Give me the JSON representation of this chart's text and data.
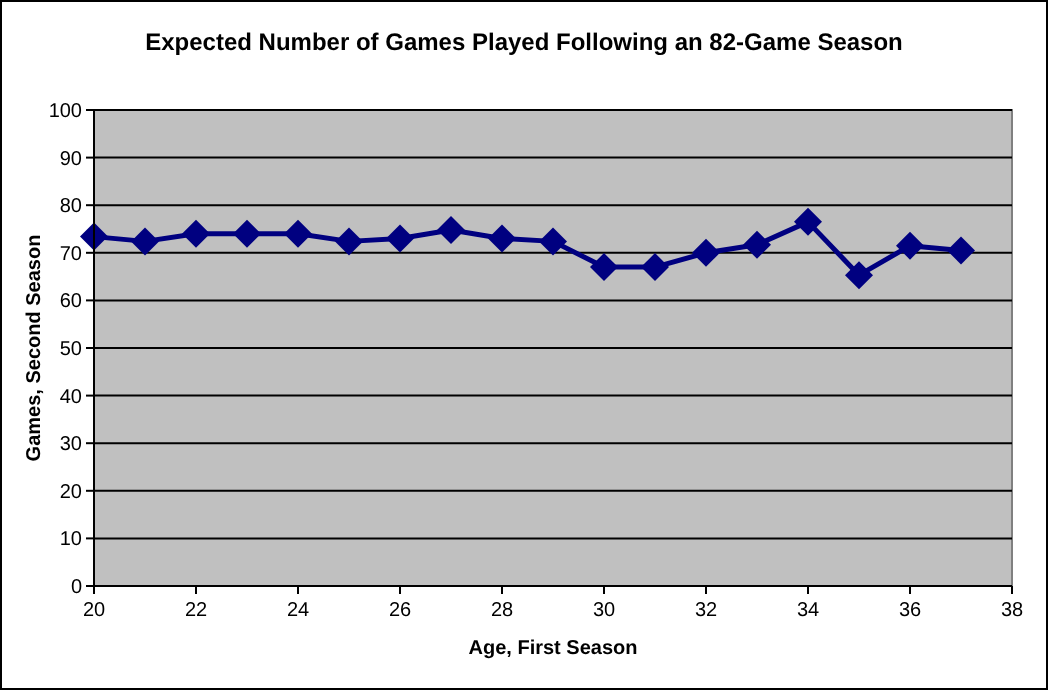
{
  "chart_data": {
    "type": "line",
    "title": "Expected Number of Games Played Following an 82-Game Season",
    "xlabel": "Age, First Season",
    "ylabel": "Games, Second Season",
    "x": [
      20,
      21,
      22,
      23,
      24,
      25,
      26,
      27,
      28,
      29,
      30,
      31,
      32,
      33,
      34,
      35,
      36,
      37
    ],
    "series": [
      {
        "color": "#000080",
        "values": [
          73.4,
          72.4,
          74,
          74,
          74,
          72.4,
          73,
          74.8,
          73,
          72.4,
          67,
          67,
          70,
          71.7,
          76.5,
          65.3,
          71.5,
          70.5
        ]
      }
    ],
    "xlim": [
      20,
      38
    ],
    "xticks": [
      20,
      22,
      24,
      26,
      28,
      30,
      32,
      34,
      36,
      38
    ],
    "ylim": [
      0,
      100
    ],
    "yticks": [
      0,
      10,
      20,
      30,
      40,
      50,
      60,
      70,
      80,
      90,
      100
    ],
    "grid": "y",
    "marker": "diamond",
    "line_style": "solid"
  }
}
